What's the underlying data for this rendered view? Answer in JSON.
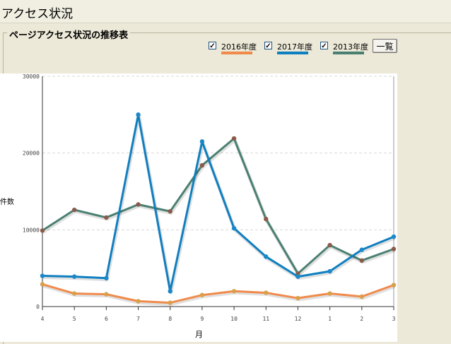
{
  "header": {
    "title": "アクセス状況"
  },
  "group": {
    "legend": "ページアクセス状況の推移表"
  },
  "legend": [
    {
      "label": "2016年度",
      "color": "#f08a4b",
      "checked": true
    },
    {
      "label": "2017年度",
      "color": "#0f7fc0",
      "checked": true
    },
    {
      "label": "2013年度",
      "color": "#4a8072",
      "checked": true
    }
  ],
  "controls": {
    "list_button": "一覧"
  },
  "chart_data": {
    "type": "line",
    "xlabel": "月",
    "ylabel": "件数",
    "categories": [
      "4",
      "5",
      "6",
      "7",
      "8",
      "9",
      "10",
      "11",
      "12",
      "1",
      "2",
      "3"
    ],
    "ylim": [
      0,
      30000
    ],
    "yticks": [
      0,
      10000,
      20000,
      30000
    ],
    "grid": true,
    "series": [
      {
        "name": "2016年度",
        "color": "#f08a4b",
        "marker_color": "#d9a04a",
        "values": [
          2900,
          1700,
          1600,
          700,
          500,
          1500,
          2000,
          1800,
          1100,
          1700,
          1300,
          2800
        ]
      },
      {
        "name": "2017年度",
        "color": "#0f7fc0",
        "marker_color": "#1a88c9",
        "values": [
          4000,
          3900,
          3700,
          25000,
          2000,
          21500,
          10200,
          6500,
          3900,
          4600,
          7400,
          9100
        ]
      },
      {
        "name": "2013年度",
        "color": "#4a8072",
        "marker_color": "#8b5a4a",
        "values": [
          9900,
          12600,
          11600,
          13300,
          12400,
          18400,
          21900,
          11400,
          4300,
          8000,
          6000,
          7500
        ]
      }
    ]
  }
}
